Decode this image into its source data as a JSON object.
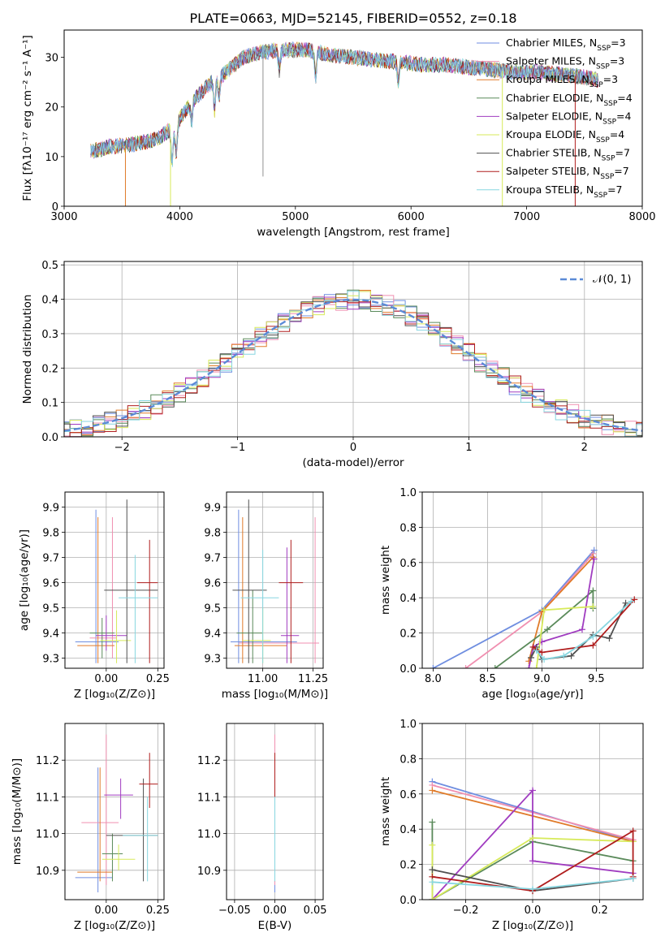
{
  "title": "PLATE=0663, MJD=52145, FIBERID=0552, z=0.18",
  "model_colors": [
    "#6f8ee0",
    "#f08fb0",
    "#e07b2a",
    "#5a8a5a",
    "#a03cc0",
    "#d7ea5a",
    "#505050",
    "#b01e1e",
    "#87d6e0"
  ],
  "chart_data": [
    {
      "id": "spectrum",
      "type": "line",
      "xlabel": "wavelength [Angstrom, rest frame]",
      "ylabel": "Flux [fλ10⁻¹⁷ erg cm⁻² s⁻¹ A⁻¹]",
      "xlim": [
        3000,
        8000
      ],
      "ylim": [
        0,
        35.5
      ],
      "xticks": [
        "3000",
        "4000",
        "5000",
        "6000",
        "7000",
        "8000"
      ],
      "yticks": [
        "0",
        "10",
        "20",
        "30"
      ],
      "legend_position": "top-right",
      "series": [
        {
          "name": "Chabrier MILES, N_SSP=3"
        },
        {
          "name": "Salpeter MILES, N_SSP=3"
        },
        {
          "name": "Kroupa MILES, N_SSP=3"
        },
        {
          "name": "Chabrier ELODIE, N_SSP=4"
        },
        {
          "name": "Salpeter ELODIE, N_SSP=4"
        },
        {
          "name": "Kroupa ELODIE, N_SSP=4"
        },
        {
          "name": "Chabrier STELIB, N_SSP=7"
        },
        {
          "name": "Salpeter STELIB, N_SSP=7"
        },
        {
          "name": "Kroupa STELIB, N_SSP=7"
        }
      ],
      "continuum": {
        "x": [
          3230,
          3400,
          3600,
          3800,
          3950,
          4100,
          4250,
          4400,
          4550,
          4700,
          4900,
          5100,
          5300,
          5500,
          5700,
          5900,
          6100,
          6300,
          6500,
          6700,
          6900,
          7100,
          7300,
          7500,
          7600
        ],
        "y": [
          11,
          12,
          12.5,
          13.5,
          16,
          21,
          24.5,
          27,
          30,
          31,
          31.5,
          31.5,
          30.5,
          30,
          29.5,
          29,
          28.5,
          28.5,
          28,
          27.5,
          27,
          27,
          26.5,
          26,
          25.5
        ]
      },
      "absorption_lines": [
        [
          3934,
          7
        ],
        [
          3969,
          6
        ],
        [
          4102,
          4
        ],
        [
          4300,
          6
        ],
        [
          4340,
          4
        ],
        [
          4861,
          4
        ],
        [
          5175,
          5
        ],
        [
          5890,
          4
        ]
      ],
      "drops_to_zero": [
        3530,
        3920,
        6790,
        7420
      ],
      "spike": {
        "x": 4720,
        "y": 6
      }
    },
    {
      "id": "residuals",
      "type": "line",
      "xlabel": "(data-model)/error",
      "ylabel": "Normed distribution",
      "xlim": [
        -2.5,
        2.5
      ],
      "ylim": [
        0,
        0.51
      ],
      "xticks": [
        "−2",
        "−1",
        "0",
        "1",
        "2"
      ],
      "yticks": [
        "0.0",
        "0.1",
        "0.2",
        "0.3",
        "0.4",
        "0.5"
      ],
      "legend": "𝒩(0, 1)",
      "legend_position": "top-right",
      "bin_width": 0.1,
      "normal": {
        "mean": 0,
        "sigma": 1
      }
    },
    {
      "id": "age-vs-Z",
      "type": "scatter",
      "xlabel": "Z [log₁₀(Z/Z⊙)]",
      "ylabel": "age  [log₁₀(age/yr)]",
      "xlim": [
        -0.2,
        0.28
      ],
      "ylim": [
        9.26,
        9.96
      ],
      "xticks": [
        "0.00",
        "0.25"
      ],
      "yticks": [
        "9.3",
        "9.4",
        "9.5",
        "9.6",
        "9.7",
        "9.8",
        "9.9"
      ],
      "points": [
        {
          "x": -0.05,
          "y": 9.365,
          "xlo": -0.15,
          "xhi": 0.06,
          "ylo": 9.28,
          "yhi": 9.89
        },
        {
          "x": 0.03,
          "y": 9.38,
          "xlo": -0.08,
          "xhi": 0.05,
          "ylo": 9.3,
          "yhi": 9.86
        },
        {
          "x": -0.04,
          "y": 9.35,
          "xlo": -0.14,
          "xhi": 0.04,
          "ylo": 9.28,
          "yhi": 9.86
        },
        {
          "x": -0.02,
          "y": 9.4,
          "xlo": -0.08,
          "xhi": 0.04,
          "ylo": 9.3,
          "yhi": 9.46
        },
        {
          "x": 0.0,
          "y": 9.39,
          "xlo": -0.05,
          "xhi": 0.1,
          "ylo": 9.33,
          "yhi": 9.47
        },
        {
          "x": 0.05,
          "y": 9.37,
          "xlo": -0.03,
          "xhi": 0.12,
          "ylo": 9.28,
          "yhi": 9.49
        },
        {
          "x": 0.1,
          "y": 9.57,
          "xlo": -0.01,
          "xhi": 0.25,
          "ylo": 9.28,
          "yhi": 9.93
        },
        {
          "x": 0.21,
          "y": 9.6,
          "xlo": 0.15,
          "xhi": 0.25,
          "ylo": 9.28,
          "yhi": 9.77
        },
        {
          "x": 0.14,
          "y": 9.54,
          "xlo": 0.06,
          "xhi": 0.25,
          "ylo": 9.28,
          "yhi": 9.71
        }
      ]
    },
    {
      "id": "age-vs-mass",
      "type": "scatter",
      "xlabel": "mass [log₁₀(M/M⊙)]",
      "ylabel": "",
      "xlim": [
        10.82,
        11.3
      ],
      "ylim": [
        9.26,
        9.96
      ],
      "xticks": [
        "11.00",
        "11.25"
      ],
      "yticks": [
        "9.3",
        "9.4",
        "9.5",
        "9.6",
        "9.7",
        "9.8",
        "9.9"
      ],
      "points": [
        {
          "x": 10.88,
          "y": 9.365,
          "xlo": 10.84,
          "xhi": 11.17,
          "ylo": 9.28,
          "yhi": 9.89
        },
        {
          "x": 11.26,
          "y": 9.36,
          "xlo": 10.88,
          "xhi": 11.28,
          "ylo": 9.28,
          "yhi": 9.86
        },
        {
          "x": 10.9,
          "y": 9.35,
          "xlo": 10.86,
          "xhi": 11.12,
          "ylo": 9.28,
          "yhi": 9.86
        },
        {
          "x": 10.95,
          "y": 9.4,
          "xlo": 10.87,
          "xhi": 11.0,
          "ylo": 9.28,
          "yhi": 9.57
        },
        {
          "x": 11.12,
          "y": 9.39,
          "xlo": 11.09,
          "xhi": 11.18,
          "ylo": 9.28,
          "yhi": 9.74
        },
        {
          "x": 11.0,
          "y": 9.37,
          "xlo": 10.9,
          "xhi": 11.04,
          "ylo": 9.28,
          "yhi": 9.5
        },
        {
          "x": 10.93,
          "y": 9.57,
          "xlo": 10.85,
          "xhi": 11.02,
          "ylo": 9.28,
          "yhi": 9.93
        },
        {
          "x": 11.14,
          "y": 9.6,
          "xlo": 11.08,
          "xhi": 11.2,
          "ylo": 9.28,
          "yhi": 9.77
        },
        {
          "x": 11.0,
          "y": 9.54,
          "xlo": 10.89,
          "xhi": 11.08,
          "ylo": 9.28,
          "yhi": 9.73
        }
      ]
    },
    {
      "id": "weight-vs-age",
      "type": "line",
      "xlabel": "age  [log₁₀(age/yr)]",
      "ylabel": "mass weight",
      "xlim": [
        7.9,
        9.93
      ],
      "ylim": [
        0,
        1
      ],
      "xticks": [
        "8.0",
        "8.5",
        "9.0",
        "9.5"
      ],
      "yticks": [
        "0.0",
        "0.2",
        "0.4",
        "0.6",
        "0.8",
        "1.0"
      ],
      "series": [
        {
          "x": [
            8.0,
            9.0,
            9.48
          ],
          "y": [
            0.0,
            0.33,
            0.67
          ]
        },
        {
          "x": [
            8.3,
            9.0,
            9.47
          ],
          "y": [
            0.0,
            0.32,
            0.65
          ]
        },
        {
          "x": [
            8.88,
            9.0,
            9.47
          ],
          "y": [
            0.04,
            0.32,
            0.63
          ]
        },
        {
          "x": [
            8.57,
            9.05,
            9.47,
            9.47
          ],
          "y": [
            0.0,
            0.22,
            0.44,
            0.34
          ]
        },
        {
          "x": [
            8.88,
            8.92,
            9.0,
            9.37,
            9.48
          ],
          "y": [
            0.0,
            0.12,
            0.15,
            0.22,
            0.62
          ]
        },
        {
          "x": [
            8.95,
            9.02,
            9.47
          ],
          "y": [
            0.0,
            0.33,
            0.35
          ]
        },
        {
          "x": [
            8.9,
            8.95,
            9.0,
            9.27,
            9.47,
            9.62,
            9.77
          ],
          "y": [
            0.06,
            0.12,
            0.05,
            0.07,
            0.19,
            0.17,
            0.37
          ]
        },
        {
          "x": [
            8.92,
            9.0,
            9.47,
            9.85
          ],
          "y": [
            0.12,
            0.09,
            0.13,
            0.39
          ]
        },
        {
          "x": [
            8.95,
            9.02,
            9.2,
            9.47,
            9.82
          ],
          "y": [
            0.1,
            0.05,
            0.07,
            0.18,
            0.38
          ]
        }
      ]
    },
    {
      "id": "mass-vs-Z",
      "type": "scatter",
      "xlabel": "Z [log₁₀(Z/Z⊙)]",
      "ylabel": "mass [log₁₀(M/M⊙)]",
      "xlim": [
        -0.2,
        0.28
      ],
      "ylim": [
        10.82,
        11.3
      ],
      "xticks": [
        "0.00",
        "0.25"
      ],
      "yticks": [
        "10.9",
        "11.0",
        "11.1",
        "11.2"
      ],
      "points": [
        {
          "x": -0.04,
          "y": 10.88,
          "xlo": -0.15,
          "xhi": 0.03,
          "ylo": 10.84,
          "yhi": 11.18
        },
        {
          "x": 0.0,
          "y": 11.03,
          "xlo": -0.12,
          "xhi": 0.06,
          "ylo": 10.86,
          "yhi": 11.27
        },
        {
          "x": -0.03,
          "y": 10.895,
          "xlo": -0.14,
          "xhi": 0.03,
          "ylo": 10.87,
          "yhi": 11.18
        },
        {
          "x": 0.03,
          "y": 10.945,
          "xlo": -0.02,
          "xhi": 0.08,
          "ylo": 10.87,
          "yhi": 11.0
        },
        {
          "x": 0.07,
          "y": 11.105,
          "xlo": -0.01,
          "xhi": 0.13,
          "ylo": 11.04,
          "yhi": 11.15
        },
        {
          "x": 0.06,
          "y": 10.93,
          "xlo": -0.02,
          "xhi": 0.14,
          "ylo": 10.9,
          "yhi": 10.97
        },
        {
          "x": 0.18,
          "y": 10.995,
          "xlo": 0.0,
          "xhi": 0.25,
          "ylo": 10.87,
          "yhi": 11.15
        },
        {
          "x": 0.21,
          "y": 11.135,
          "xlo": 0.16,
          "xhi": 0.25,
          "ylo": 11.07,
          "yhi": 11.22
        },
        {
          "x": 0.2,
          "y": 10.995,
          "xlo": 0.08,
          "xhi": 0.25,
          "ylo": 10.87,
          "yhi": 11.1
        }
      ]
    },
    {
      "id": "mass-vs-EBV",
      "type": "scatter",
      "xlabel": "E(B-V)",
      "ylabel": "",
      "xlim": [
        -0.06,
        0.06
      ],
      "ylim": [
        10.82,
        11.3
      ],
      "xticks": [
        "−0.05",
        "0.00",
        "0.05"
      ],
      "yticks": [
        "10.9",
        "11.0",
        "11.1",
        "11.2"
      ],
      "points": [
        {
          "x": 0.0,
          "y": 11.0,
          "xlo": 0.0,
          "xhi": 0.0,
          "ylo": 10.84,
          "yhi": 11.18
        },
        {
          "x": 0.0,
          "y": 11.03,
          "xlo": 0.0,
          "xhi": 0.0,
          "ylo": 10.86,
          "yhi": 11.27
        },
        {
          "x": 0.0,
          "y": 10.9,
          "xlo": 0.0,
          "xhi": 0.0,
          "ylo": 10.87,
          "yhi": 11.18
        },
        {
          "x": 0.0,
          "y": 10.95,
          "xlo": 0.0,
          "xhi": 0.0,
          "ylo": 10.87,
          "yhi": 11.0
        },
        {
          "x": 0.0,
          "y": 11.1,
          "xlo": 0.0,
          "xhi": 0.0,
          "ylo": 11.04,
          "yhi": 11.15
        },
        {
          "x": 0.0,
          "y": 10.93,
          "xlo": 0.0,
          "xhi": 0.0,
          "ylo": 10.9,
          "yhi": 10.97
        },
        {
          "x": 0.0,
          "y": 11.0,
          "xlo": 0.0,
          "xhi": 0.0,
          "ylo": 10.87,
          "yhi": 11.15
        },
        {
          "x": 0.0,
          "y": 11.13,
          "xlo": 0.0,
          "xhi": 0.0,
          "ylo": 11.07,
          "yhi": 11.22
        },
        {
          "x": 0.0,
          "y": 11.0,
          "xlo": 0.0,
          "xhi": 0.0,
          "ylo": 10.87,
          "yhi": 11.1
        }
      ]
    },
    {
      "id": "weight-vs-Z",
      "type": "line",
      "xlabel": "Z [log₁₀(Z/Z⊙)]",
      "ylabel": "mass weight",
      "xlim": [
        -0.33,
        0.33
      ],
      "ylim": [
        0,
        1
      ],
      "xticks": [
        "−0.2",
        "0.0",
        "0.2"
      ],
      "yticks": [
        "0.0",
        "0.2",
        "0.4",
        "0.6",
        "0.8",
        "1.0"
      ],
      "series": [
        {
          "x": [
            -0.3,
            0.3
          ],
          "y": [
            0.67,
            0.33
          ]
        },
        {
          "x": [
            -0.3,
            0.3
          ],
          "y": [
            0.65,
            0.34
          ]
        },
        {
          "x": [
            -0.3,
            0.3
          ],
          "y": [
            0.62,
            0.33
          ]
        },
        {
          "x": [
            -0.3,
            -0.3,
            0.0,
            0.3
          ],
          "y": [
            0.44,
            0.0,
            0.33,
            0.22
          ]
        },
        {
          "x": [
            -0.3,
            0.0,
            0.0,
            0.3
          ],
          "y": [
            0.0,
            0.62,
            0.22,
            0.15
          ]
        },
        {
          "x": [
            -0.3,
            -0.3,
            0.0,
            0.3
          ],
          "y": [
            0.31,
            0.0,
            0.35,
            0.33
          ]
        },
        {
          "x": [
            -0.3,
            0.0,
            0.3
          ],
          "y": [
            0.17,
            0.05,
            0.12
          ]
        },
        {
          "x": [
            -0.3,
            0.0,
            0.3,
            0.3
          ],
          "y": [
            0.13,
            0.05,
            0.39,
            0.13
          ]
        },
        {
          "x": [
            -0.3,
            0.0,
            0.3
          ],
          "y": [
            0.1,
            0.06,
            0.12
          ]
        }
      ]
    }
  ]
}
